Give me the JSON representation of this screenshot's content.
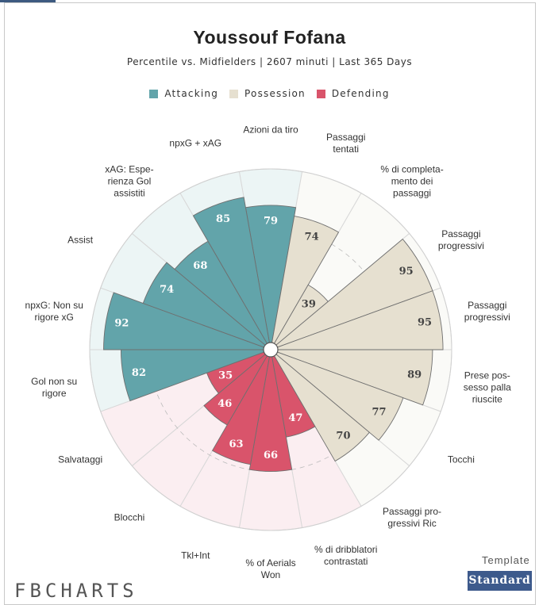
{
  "chart_data": {
    "type": "pizza",
    "title": "Youssouf Fofana",
    "subtitle": "Percentile vs. Midfielders | 2607 minuti | Last 365 Days",
    "categories": [
      "Azioni da tiro",
      "Passaggi\ntentati",
      "% di completa-\nmento dei\npassaggi",
      "Passaggi\nprogressivi",
      "Passaggi\nprogressivi",
      "Prese pos-\nsesso palla\nriuscite",
      "Tocchi",
      "Passaggi pro-\ngressivi Ric",
      "% di dribblatori\ncontrastati",
      "% of Aerials\nWon",
      "Tkl+Int",
      "Blocchi",
      "Salvataggi",
      "Gol non su\nrigore",
      "npxG: Non su\nrigore xG",
      "Assist",
      "xAG: Espe-\nrienza Gol\nassistiti",
      "npxG + xAG"
    ],
    "series": [
      {
        "name": "Attacking",
        "color": "#62a4aa",
        "bg_color": "#ecf5f5",
        "text_color": "#ffffff",
        "values": [
          79,
          null,
          null,
          null,
          null,
          null,
          null,
          null,
          null,
          null,
          null,
          null,
          null,
          82,
          92,
          74,
          68,
          85
        ]
      },
      {
        "name": "Possession",
        "color": "#e6e0d0",
        "bg_color": "#fafaf7",
        "text_color": "#444444",
        "values": [
          null,
          74,
          39,
          95,
          95,
          89,
          77,
          70,
          null,
          null,
          null,
          null,
          null,
          null,
          null,
          null,
          null,
          null
        ]
      },
      {
        "name": "Defending",
        "color": "#d9546b",
        "bg_color": "#fbeef1",
        "text_color": "#ffffff",
        "values": [
          null,
          null,
          null,
          null,
          null,
          null,
          null,
          null,
          47,
          66,
          63,
          46,
          35,
          null,
          null,
          null,
          null,
          null
        ]
      }
    ],
    "ylim": [
      0,
      100
    ]
  },
  "footer": {
    "template_label": "Template",
    "button": "Standard",
    "logo": "FBCHARTS"
  }
}
